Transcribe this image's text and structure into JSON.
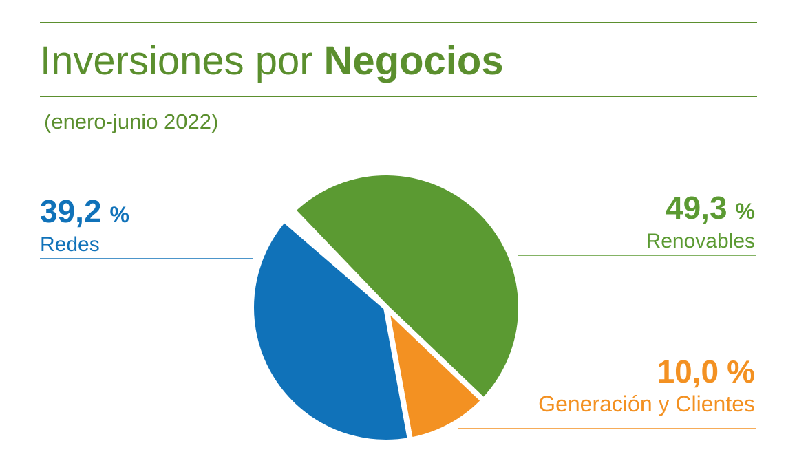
{
  "chart_data": {
    "type": "pie",
    "title": "Inversiones por",
    "title_bold": "Negocios",
    "subtitle": "(enero-junio 2022)",
    "unit": "%",
    "categories": [
      "Renovables",
      "Generación y Clientes",
      "Redes"
    ],
    "values": [
      49.3,
      10.0,
      39.2
    ],
    "value_labels": [
      "49,3",
      "10,0",
      "39,2"
    ],
    "colors": [
      "#5b9a32",
      "#f39122",
      "#1072b9"
    ]
  }
}
